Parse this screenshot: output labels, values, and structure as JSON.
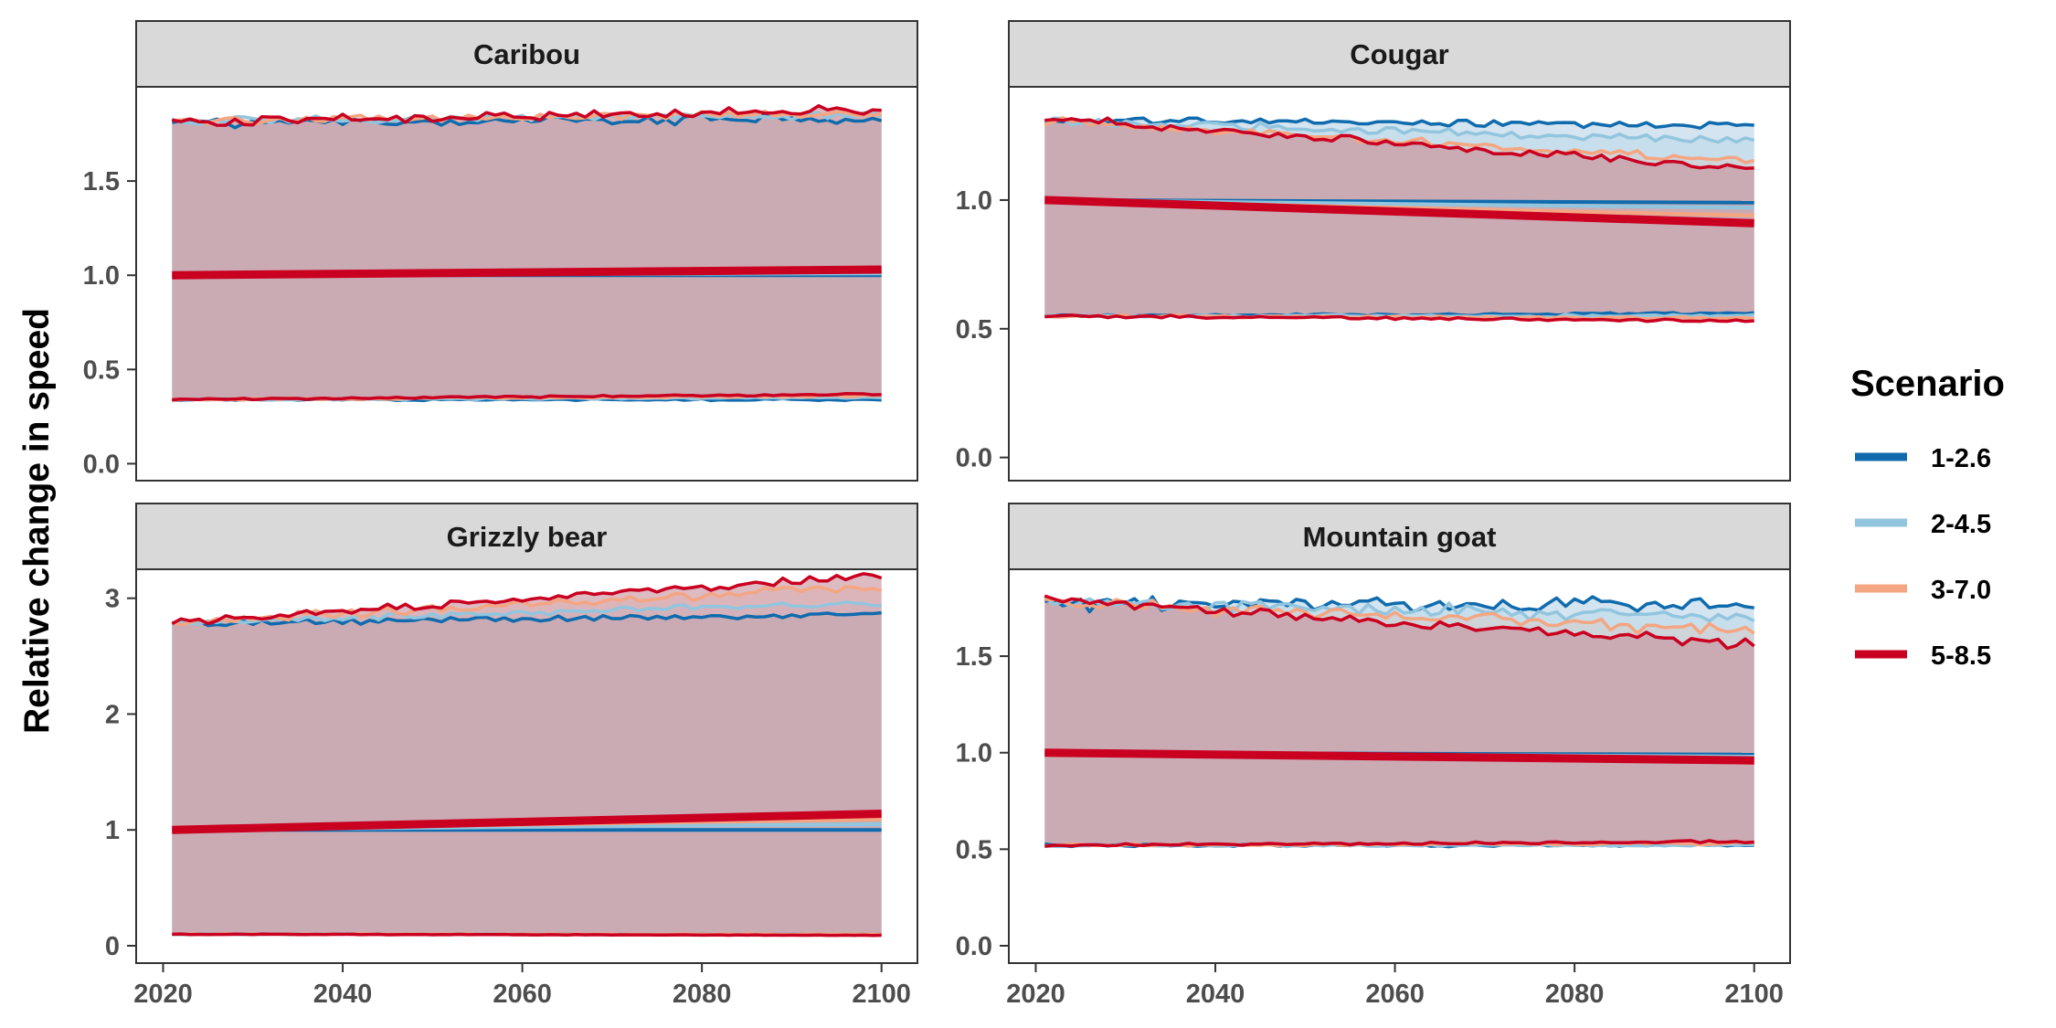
{
  "chart_data": {
    "type": "line",
    "ylabel": "Relative change in speed",
    "xlim": [
      2017,
      2104
    ],
    "x_ticks": [
      2020,
      2040,
      2060,
      2080,
      2100
    ],
    "legend": {
      "title": "Scenario",
      "placement": "right",
      "entries": [
        {
          "name": "1-2.6",
          "color": "#0f6bad"
        },
        {
          "name": "2-4.5",
          "color": "#92c5de"
        },
        {
          "name": "3-7.0",
          "color": "#f4a582"
        },
        {
          "name": "5-8.5",
          "color": "#ca0020"
        }
      ]
    },
    "band_fill_color": "#c9a9b2",
    "panels": [
      {
        "title": "Caribou",
        "ylim": [
          -0.09,
          2.0
        ],
        "y_ticks": [
          0.0,
          0.5,
          1.0,
          1.5
        ],
        "y_tick_labels": [
          "0.0",
          "0.5",
          "1.0",
          "1.5"
        ],
        "x_range": [
          2021,
          2100
        ],
        "series": [
          {
            "name": "1-2.6",
            "mean": [
              [
                2021,
                1.0
              ],
              [
                2100,
                1.0
              ]
            ],
            "upper": {
              "start": 1.81,
              "end": 1.83,
              "noise": 0.02
            },
            "lower": {
              "start": 0.34,
              "end": 0.34,
              "noise": 0.004
            }
          },
          {
            "name": "2-4.5",
            "mean": [
              [
                2021,
                1.0
              ],
              [
                2100,
                1.01
              ]
            ],
            "upper": {
              "start": 1.82,
              "end": 1.85,
              "noise": 0.015
            },
            "lower": {
              "start": 0.34,
              "end": 0.35,
              "noise": 0.004
            }
          },
          {
            "name": "3-7.0",
            "mean": [
              [
                2021,
                1.0
              ],
              [
                2100,
                1.02
              ]
            ],
            "upper": {
              "start": 1.82,
              "end": 1.86,
              "noise": 0.015
            },
            "lower": {
              "start": 0.34,
              "end": 0.36,
              "noise": 0.004
            }
          },
          {
            "name": "5-8.5",
            "mean": [
              [
                2021,
                1.0
              ],
              [
                2100,
                1.03
              ]
            ],
            "upper": {
              "start": 1.81,
              "end": 1.88,
              "noise": 0.02
            },
            "lower": {
              "start": 0.34,
              "end": 0.37,
              "noise": 0.004
            }
          }
        ]
      },
      {
        "title": "Cougar",
        "ylim": [
          -0.09,
          1.44
        ],
        "y_ticks": [
          0.0,
          0.5,
          1.0
        ],
        "y_tick_labels": [
          "0.0",
          "0.5",
          "1.0"
        ],
        "x_range": [
          2021,
          2100
        ],
        "series": [
          {
            "name": "1-2.6",
            "mean": [
              [
                2021,
                1.0
              ],
              [
                2100,
                0.99
              ]
            ],
            "upper": {
              "start": 1.31,
              "end": 1.29,
              "noise": 0.01
            },
            "lower": {
              "start": 0.55,
              "end": 0.56,
              "noise": 0.004
            }
          },
          {
            "name": "2-4.5",
            "mean": [
              [
                2021,
                1.0
              ],
              [
                2100,
                0.97
              ]
            ],
            "upper": {
              "start": 1.31,
              "end": 1.23,
              "noise": 0.012
            },
            "lower": {
              "start": 0.55,
              "end": 0.55,
              "noise": 0.004
            }
          },
          {
            "name": "3-7.0",
            "mean": [
              [
                2021,
                1.0
              ],
              [
                2100,
                0.94
              ]
            ],
            "upper": {
              "start": 1.31,
              "end": 1.15,
              "noise": 0.012
            },
            "lower": {
              "start": 0.55,
              "end": 0.54,
              "noise": 0.004
            }
          },
          {
            "name": "5-8.5",
            "mean": [
              [
                2021,
                1.0
              ],
              [
                2100,
                0.91
              ]
            ],
            "upper": {
              "start": 1.32,
              "end": 1.12,
              "noise": 0.012
            },
            "lower": {
              "start": 0.55,
              "end": 0.53,
              "noise": 0.004
            }
          }
        ]
      },
      {
        "title": "Grizzly bear",
        "ylim": [
          -0.15,
          3.25
        ],
        "y_ticks": [
          0,
          1,
          2,
          3
        ],
        "y_tick_labels": [
          "0",
          "1",
          "2",
          "3"
        ],
        "x_range": [
          2021,
          2100
        ],
        "series": [
          {
            "name": "1-2.6",
            "mean": [
              [
                2021,
                1.0
              ],
              [
                2100,
                1.0
              ]
            ],
            "upper": {
              "start": 2.78,
              "end": 2.86,
              "noise": 0.02
            },
            "lower": {
              "start": 0.1,
              "end": 0.1,
              "noise": 0.002
            }
          },
          {
            "name": "2-4.5",
            "mean": [
              [
                2021,
                1.0
              ],
              [
                2100,
                1.05
              ]
            ],
            "upper": {
              "start": 2.79,
              "end": 2.96,
              "noise": 0.02
            },
            "lower": {
              "start": 0.1,
              "end": 0.1,
              "noise": 0.002
            }
          },
          {
            "name": "3-7.0",
            "mean": [
              [
                2021,
                1.0
              ],
              [
                2100,
                1.09
              ]
            ],
            "upper": {
              "start": 2.79,
              "end": 3.1,
              "noise": 0.03
            },
            "lower": {
              "start": 0.1,
              "end": 0.1,
              "noise": 0.002
            }
          },
          {
            "name": "5-8.5",
            "mean": [
              [
                2021,
                1.0
              ],
              [
                2100,
                1.14
              ]
            ],
            "upper": {
              "start": 2.79,
              "end": 3.2,
              "noise": 0.025
            },
            "lower": {
              "start": 0.1,
              "end": 0.09,
              "noise": 0.002
            }
          }
        ]
      },
      {
        "title": "Mountain goat",
        "ylim": [
          -0.09,
          1.95
        ],
        "y_ticks": [
          0.0,
          0.5,
          1.0,
          1.5
        ],
        "y_tick_labels": [
          "0.0",
          "0.5",
          "1.0",
          "1.5"
        ],
        "x_range": [
          2021,
          2100
        ],
        "series": [
          {
            "name": "1-2.6",
            "mean": [
              [
                2021,
                1.0
              ],
              [
                2100,
                0.99
              ]
            ],
            "upper": {
              "start": 1.77,
              "end": 1.77,
              "noise": 0.03
            },
            "lower": {
              "start": 0.52,
              "end": 0.52,
              "noise": 0.005
            }
          },
          {
            "name": "2-4.5",
            "mean": [
              [
                2021,
                1.0
              ],
              [
                2100,
                0.98
              ]
            ],
            "upper": {
              "start": 1.78,
              "end": 1.7,
              "noise": 0.03
            },
            "lower": {
              "start": 0.52,
              "end": 0.52,
              "noise": 0.005
            }
          },
          {
            "name": "3-7.0",
            "mean": [
              [
                2021,
                1.0
              ],
              [
                2100,
                0.97
              ]
            ],
            "upper": {
              "start": 1.78,
              "end": 1.63,
              "noise": 0.025
            },
            "lower": {
              "start": 0.52,
              "end": 0.53,
              "noise": 0.005
            }
          },
          {
            "name": "5-8.5",
            "mean": [
              [
                2021,
                1.0
              ],
              [
                2100,
                0.96
              ]
            ],
            "upper": {
              "start": 1.79,
              "end": 1.56,
              "noise": 0.02
            },
            "lower": {
              "start": 0.52,
              "end": 0.54,
              "noise": 0.005
            }
          }
        ]
      }
    ]
  }
}
